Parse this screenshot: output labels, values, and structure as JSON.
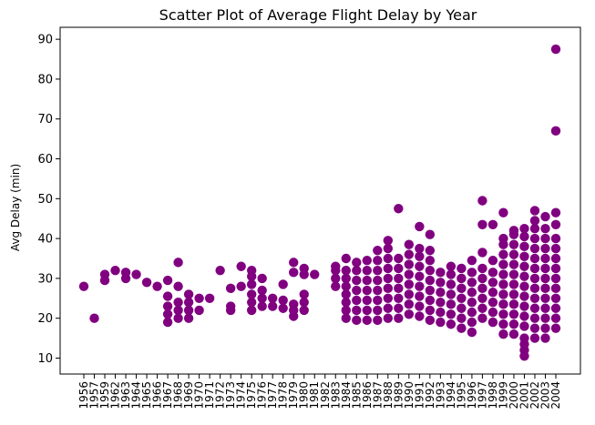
{
  "chart_data": {
    "type": "scatter",
    "title": "Scatter Plot of Average Flight Delay by Year",
    "xlabel": "",
    "ylabel": "Avg Delay (min)",
    "ylim": [
      6,
      93
    ],
    "yticks": [
      10,
      20,
      30,
      40,
      50,
      60,
      70,
      80,
      90
    ],
    "categories": [
      "1956",
      "1957",
      "1959",
      "1962",
      "1963",
      "1964",
      "1965",
      "1966",
      "1967",
      "1968",
      "1969",
      "1970",
      "1971",
      "1972",
      "1973",
      "1974",
      "1975",
      "1976",
      "1977",
      "1978",
      "1979",
      "1980",
      "1981",
      "1982",
      "1983",
      "1984",
      "1985",
      "1986",
      "1987",
      "1988",
      "1989",
      "1990",
      "1991",
      "1992",
      "1993",
      "1994",
      "1995",
      "1996",
      "1997",
      "1998",
      "1999",
      "2000",
      "2001",
      "2002",
      "2003",
      "2004"
    ],
    "grid": false,
    "marker_color": "#800080",
    "series": [
      {
        "points": [
          {
            "x": "1956",
            "y": 28
          },
          {
            "x": "1957",
            "y": 20
          },
          {
            "x": "1959",
            "y": 29.5
          },
          {
            "x": "1959",
            "y": 31
          },
          {
            "x": "1962",
            "y": 32
          },
          {
            "x": "1963",
            "y": 30
          },
          {
            "x": "1963",
            "y": 31.5
          },
          {
            "x": "1964",
            "y": 31
          },
          {
            "x": "1965",
            "y": 29
          },
          {
            "x": "1966",
            "y": 28
          },
          {
            "x": "1967",
            "y": 19
          },
          {
            "x": "1967",
            "y": 21
          },
          {
            "x": "1967",
            "y": 23
          },
          {
            "x": "1967",
            "y": 25.5
          },
          {
            "x": "1967",
            "y": 29.5
          },
          {
            "x": "1968",
            "y": 20
          },
          {
            "x": "1968",
            "y": 22
          },
          {
            "x": "1968",
            "y": 24
          },
          {
            "x": "1968",
            "y": 28
          },
          {
            "x": "1968",
            "y": 34
          },
          {
            "x": "1969",
            "y": 20
          },
          {
            "x": "1969",
            "y": 22
          },
          {
            "x": "1969",
            "y": 24
          },
          {
            "x": "1969",
            "y": 26
          },
          {
            "x": "1970",
            "y": 22
          },
          {
            "x": "1970",
            "y": 25
          },
          {
            "x": "1971",
            "y": 25
          },
          {
            "x": "1972",
            "y": 32
          },
          {
            "x": "1973",
            "y": 22
          },
          {
            "x": "1973",
            "y": 23
          },
          {
            "x": "1973",
            "y": 27.5
          },
          {
            "x": "1974",
            "y": 28
          },
          {
            "x": "1974",
            "y": 33
          },
          {
            "x": "1975",
            "y": 22
          },
          {
            "x": "1975",
            "y": 24
          },
          {
            "x": "1975",
            "y": 26
          },
          {
            "x": "1975",
            "y": 28.5
          },
          {
            "x": "1975",
            "y": 30.5
          },
          {
            "x": "1975",
            "y": 32
          },
          {
            "x": "1976",
            "y": 23
          },
          {
            "x": "1976",
            "y": 25
          },
          {
            "x": "1976",
            "y": 27
          },
          {
            "x": "1976",
            "y": 30
          },
          {
            "x": "1977",
            "y": 23
          },
          {
            "x": "1977",
            "y": 25
          },
          {
            "x": "1978",
            "y": 22.5
          },
          {
            "x": "1978",
            "y": 24.5
          },
          {
            "x": "1978",
            "y": 28.5
          },
          {
            "x": "1979",
            "y": 20.5
          },
          {
            "x": "1979",
            "y": 22
          },
          {
            "x": "1979",
            "y": 23.5
          },
          {
            "x": "1979",
            "y": 31.5
          },
          {
            "x": "1979",
            "y": 34
          },
          {
            "x": "1980",
            "y": 22
          },
          {
            "x": "1980",
            "y": 24
          },
          {
            "x": "1980",
            "y": 26
          },
          {
            "x": "1980",
            "y": 31
          },
          {
            "x": "1980",
            "y": 32.5
          },
          {
            "x": "1981",
            "y": 31
          },
          {
            "x": "1983",
            "y": 28
          },
          {
            "x": "1983",
            "y": 30
          },
          {
            "x": "1983",
            "y": 32
          },
          {
            "x": "1983",
            "y": 33
          },
          {
            "x": "1984",
            "y": 20
          },
          {
            "x": "1984",
            "y": 22
          },
          {
            "x": "1984",
            "y": 24
          },
          {
            "x": "1984",
            "y": 26
          },
          {
            "x": "1984",
            "y": 28
          },
          {
            "x": "1984",
            "y": 30
          },
          {
            "x": "1984",
            "y": 32
          },
          {
            "x": "1984",
            "y": 35
          },
          {
            "x": "1985",
            "y": 19.5
          },
          {
            "x": "1985",
            "y": 22
          },
          {
            "x": "1985",
            "y": 24.5
          },
          {
            "x": "1985",
            "y": 27
          },
          {
            "x": "1985",
            "y": 29.5
          },
          {
            "x": "1985",
            "y": 32
          },
          {
            "x": "1985",
            "y": 34
          },
          {
            "x": "1986",
            "y": 19.5
          },
          {
            "x": "1986",
            "y": 22
          },
          {
            "x": "1986",
            "y": 24.5
          },
          {
            "x": "1986",
            "y": 27
          },
          {
            "x": "1986",
            "y": 29.5
          },
          {
            "x": "1986",
            "y": 32
          },
          {
            "x": "1986",
            "y": 34.5
          },
          {
            "x": "1987",
            "y": 19.5
          },
          {
            "x": "1987",
            "y": 22
          },
          {
            "x": "1987",
            "y": 24.5
          },
          {
            "x": "1987",
            "y": 27
          },
          {
            "x": "1987",
            "y": 29.5
          },
          {
            "x": "1987",
            "y": 32
          },
          {
            "x": "1987",
            "y": 34.5
          },
          {
            "x": "1987",
            "y": 37
          },
          {
            "x": "1988",
            "y": 20
          },
          {
            "x": "1988",
            "y": 22.5
          },
          {
            "x": "1988",
            "y": 25
          },
          {
            "x": "1988",
            "y": 27.5
          },
          {
            "x": "1988",
            "y": 30
          },
          {
            "x": "1988",
            "y": 32.5
          },
          {
            "x": "1988",
            "y": 35
          },
          {
            "x": "1988",
            "y": 37.5
          },
          {
            "x": "1988",
            "y": 39.5
          },
          {
            "x": "1989",
            "y": 20
          },
          {
            "x": "1989",
            "y": 22.5
          },
          {
            "x": "1989",
            "y": 25
          },
          {
            "x": "1989",
            "y": 27.5
          },
          {
            "x": "1989",
            "y": 30
          },
          {
            "x": "1989",
            "y": 32.5
          },
          {
            "x": "1989",
            "y": 35
          },
          {
            "x": "1989",
            "y": 47.5
          },
          {
            "x": "1990",
            "y": 21
          },
          {
            "x": "1990",
            "y": 23.5
          },
          {
            "x": "1990",
            "y": 26
          },
          {
            "x": "1990",
            "y": 28.5
          },
          {
            "x": "1990",
            "y": 31
          },
          {
            "x": "1990",
            "y": 33.5
          },
          {
            "x": "1990",
            "y": 36
          },
          {
            "x": "1990",
            "y": 38.5
          },
          {
            "x": "1991",
            "y": 20.5
          },
          {
            "x": "1991",
            "y": 23
          },
          {
            "x": "1991",
            "y": 25.5
          },
          {
            "x": "1991",
            "y": 28
          },
          {
            "x": "1991",
            "y": 30.5
          },
          {
            "x": "1991",
            "y": 33
          },
          {
            "x": "1991",
            "y": 35.5
          },
          {
            "x": "1991",
            "y": 37.5
          },
          {
            "x": "1991",
            "y": 43
          },
          {
            "x": "1992",
            "y": 19.5
          },
          {
            "x": "1992",
            "y": 22
          },
          {
            "x": "1992",
            "y": 24.5
          },
          {
            "x": "1992",
            "y": 27
          },
          {
            "x": "1992",
            "y": 29.5
          },
          {
            "x": "1992",
            "y": 32
          },
          {
            "x": "1992",
            "y": 34.5
          },
          {
            "x": "1992",
            "y": 37
          },
          {
            "x": "1992",
            "y": 41
          },
          {
            "x": "1993",
            "y": 19
          },
          {
            "x": "1993",
            "y": 21.5
          },
          {
            "x": "1993",
            "y": 24
          },
          {
            "x": "1993",
            "y": 26.5
          },
          {
            "x": "1993",
            "y": 29
          },
          {
            "x": "1993",
            "y": 31.5
          },
          {
            "x": "1994",
            "y": 18.5
          },
          {
            "x": "1994",
            "y": 21
          },
          {
            "x": "1994",
            "y": 23.5
          },
          {
            "x": "1994",
            "y": 26
          },
          {
            "x": "1994",
            "y": 28.5
          },
          {
            "x": "1994",
            "y": 31
          },
          {
            "x": "1994",
            "y": 33
          },
          {
            "x": "1995",
            "y": 17.5
          },
          {
            "x": "1995",
            "y": 20
          },
          {
            "x": "1995",
            "y": 22.5
          },
          {
            "x": "1995",
            "y": 25
          },
          {
            "x": "1995",
            "y": 27.5
          },
          {
            "x": "1995",
            "y": 30
          },
          {
            "x": "1995",
            "y": 32.5
          },
          {
            "x": "1996",
            "y": 16.5
          },
          {
            "x": "1996",
            "y": 19
          },
          {
            "x": "1996",
            "y": 21.5
          },
          {
            "x": "1996",
            "y": 24
          },
          {
            "x": "1996",
            "y": 26.5
          },
          {
            "x": "1996",
            "y": 29
          },
          {
            "x": "1996",
            "y": 31.5
          },
          {
            "x": "1996",
            "y": 34.5
          },
          {
            "x": "1997",
            "y": 20
          },
          {
            "x": "1997",
            "y": 22.5
          },
          {
            "x": "1997",
            "y": 25
          },
          {
            "x": "1997",
            "y": 27.5
          },
          {
            "x": "1997",
            "y": 30
          },
          {
            "x": "1997",
            "y": 32.5
          },
          {
            "x": "1997",
            "y": 36.5
          },
          {
            "x": "1997",
            "y": 43.5
          },
          {
            "x": "1997",
            "y": 49.5
          },
          {
            "x": "1998",
            "y": 19
          },
          {
            "x": "1998",
            "y": 21.5
          },
          {
            "x": "1998",
            "y": 24
          },
          {
            "x": "1998",
            "y": 26.5
          },
          {
            "x": "1998",
            "y": 29
          },
          {
            "x": "1998",
            "y": 31.5
          },
          {
            "x": "1998",
            "y": 34.5
          },
          {
            "x": "1998",
            "y": 43.5
          },
          {
            "x": "1999",
            "y": 16
          },
          {
            "x": "1999",
            "y": 18.5
          },
          {
            "x": "1999",
            "y": 21
          },
          {
            "x": "1999",
            "y": 23.5
          },
          {
            "x": "1999",
            "y": 26
          },
          {
            "x": "1999",
            "y": 28.5
          },
          {
            "x": "1999",
            "y": 31
          },
          {
            "x": "1999",
            "y": 33.5
          },
          {
            "x": "1999",
            "y": 36
          },
          {
            "x": "1999",
            "y": 38.5
          },
          {
            "x": "1999",
            "y": 40
          },
          {
            "x": "1999",
            "y": 46.5
          },
          {
            "x": "2000",
            "y": 16
          },
          {
            "x": "2000",
            "y": 18.5
          },
          {
            "x": "2000",
            "y": 21
          },
          {
            "x": "2000",
            "y": 23.5
          },
          {
            "x": "2000",
            "y": 26
          },
          {
            "x": "2000",
            "y": 28.5
          },
          {
            "x": "2000",
            "y": 31
          },
          {
            "x": "2000",
            "y": 33.5
          },
          {
            "x": "2000",
            "y": 36
          },
          {
            "x": "2000",
            "y": 38.5
          },
          {
            "x": "2000",
            "y": 41
          },
          {
            "x": "2000",
            "y": 42
          },
          {
            "x": "2001",
            "y": 10.5
          },
          {
            "x": "2001",
            "y": 12
          },
          {
            "x": "2001",
            "y": 13.5
          },
          {
            "x": "2001",
            "y": 15
          },
          {
            "x": "2001",
            "y": 18
          },
          {
            "x": "2001",
            "y": 20.5
          },
          {
            "x": "2001",
            "y": 23
          },
          {
            "x": "2001",
            "y": 25.5
          },
          {
            "x": "2001",
            "y": 28
          },
          {
            "x": "2001",
            "y": 30.5
          },
          {
            "x": "2001",
            "y": 33
          },
          {
            "x": "2001",
            "y": 35.5
          },
          {
            "x": "2001",
            "y": 38
          },
          {
            "x": "2001",
            "y": 40.5
          },
          {
            "x": "2001",
            "y": 42.5
          },
          {
            "x": "2002",
            "y": 15
          },
          {
            "x": "2002",
            "y": 17.5
          },
          {
            "x": "2002",
            "y": 20
          },
          {
            "x": "2002",
            "y": 22.5
          },
          {
            "x": "2002",
            "y": 25
          },
          {
            "x": "2002",
            "y": 27.5
          },
          {
            "x": "2002",
            "y": 30
          },
          {
            "x": "2002",
            "y": 32.5
          },
          {
            "x": "2002",
            "y": 35
          },
          {
            "x": "2002",
            "y": 37.5
          },
          {
            "x": "2002",
            "y": 40
          },
          {
            "x": "2002",
            "y": 42.5
          },
          {
            "x": "2002",
            "y": 44.5
          },
          {
            "x": "2002",
            "y": 47
          },
          {
            "x": "2003",
            "y": 15
          },
          {
            "x": "2003",
            "y": 17.5
          },
          {
            "x": "2003",
            "y": 20
          },
          {
            "x": "2003",
            "y": 22.5
          },
          {
            "x": "2003",
            "y": 25
          },
          {
            "x": "2003",
            "y": 27.5
          },
          {
            "x": "2003",
            "y": 30
          },
          {
            "x": "2003",
            "y": 32.5
          },
          {
            "x": "2003",
            "y": 35
          },
          {
            "x": "2003",
            "y": 37.5
          },
          {
            "x": "2003",
            "y": 40
          },
          {
            "x": "2003",
            "y": 42.5
          },
          {
            "x": "2003",
            "y": 45.5
          },
          {
            "x": "2004",
            "y": 17.5
          },
          {
            "x": "2004",
            "y": 20
          },
          {
            "x": "2004",
            "y": 22.5
          },
          {
            "x": "2004",
            "y": 25
          },
          {
            "x": "2004",
            "y": 27.5
          },
          {
            "x": "2004",
            "y": 30
          },
          {
            "x": "2004",
            "y": 32.5
          },
          {
            "x": "2004",
            "y": 35
          },
          {
            "x": "2004",
            "y": 37.5
          },
          {
            "x": "2004",
            "y": 40
          },
          {
            "x": "2004",
            "y": 43.5
          },
          {
            "x": "2004",
            "y": 46.5
          },
          {
            "x": "2004",
            "y": 67
          },
          {
            "x": "2004",
            "y": 87.5
          }
        ]
      }
    ]
  }
}
